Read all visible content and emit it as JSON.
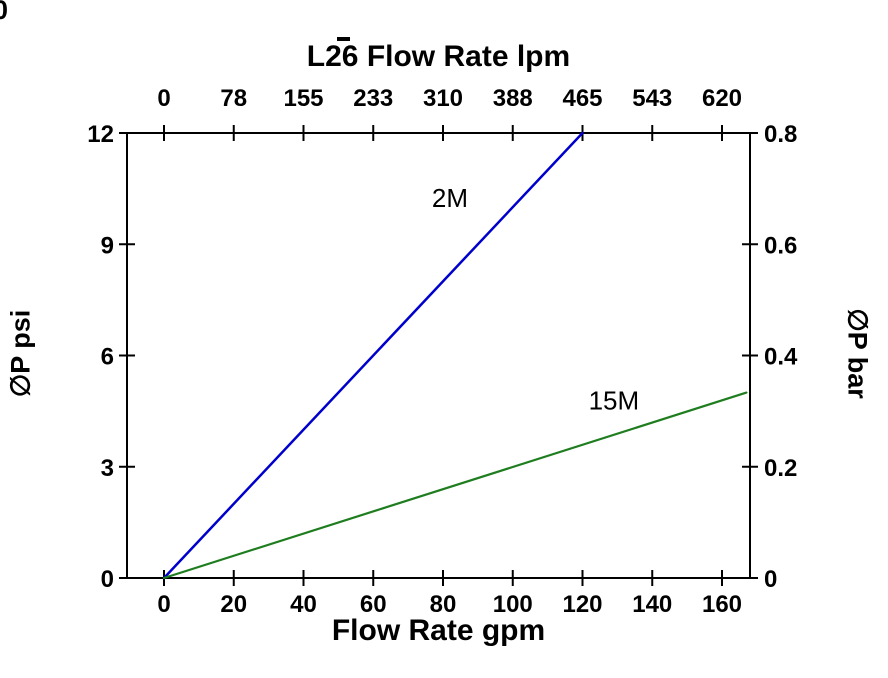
{
  "stray": {
    "corner_text": "0"
  },
  "chart_data": {
    "type": "line",
    "title_top": "L26 Flow Rate lpm",
    "xlabel_bottom": "Flow Rate gpm",
    "ylabel_left": "∅P psi",
    "ylabel_right": "∅P bar",
    "axis_color": "#000000",
    "grid": false,
    "legend": "inline-labels",
    "x_bottom": {
      "unit": "gpm",
      "ticks": [
        0,
        20,
        40,
        60,
        80,
        100,
        120,
        140,
        160
      ],
      "range": [
        0,
        168
      ]
    },
    "x_top": {
      "unit": "lpm",
      "ticks": [
        0,
        78,
        155,
        233,
        310,
        388,
        465,
        543,
        620
      ],
      "range": [
        0,
        651
      ]
    },
    "y_left": {
      "unit": "psi",
      "ticks": [
        0,
        3,
        6,
        9,
        12
      ],
      "range": [
        0,
        12
      ]
    },
    "y_right": {
      "unit": "bar",
      "ticks": [
        0,
        0.2,
        0.4,
        0.6,
        0.8
      ],
      "range": [
        0,
        0.8
      ]
    },
    "series": [
      {
        "name": "2M",
        "color": "#0000cc",
        "stroke_width": 2.5,
        "points": [
          [
            0,
            0
          ],
          [
            120,
            12
          ]
        ],
        "label_pos": [
          82,
          10.0
        ]
      },
      {
        "name": "15M",
        "color": "#1e7d1e",
        "stroke_width": 2.2,
        "points": [
          [
            0,
            0
          ],
          [
            167,
            5.0
          ]
        ],
        "label_pos": [
          129,
          4.55
        ]
      }
    ]
  }
}
